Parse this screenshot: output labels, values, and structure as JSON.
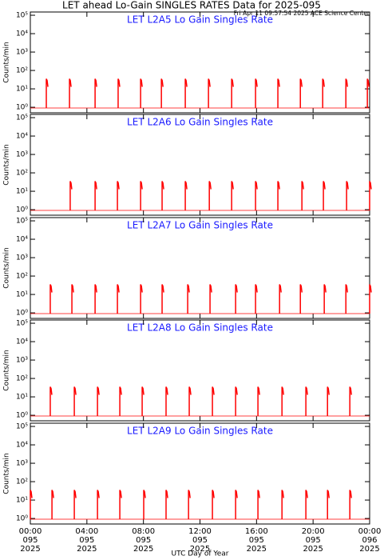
{
  "title": "LET ahead Lo-Gain SINGLES RATES Data for 2025-095",
  "timestamp": "Fri Apr 11 09:57:54 2025 ACE Science Center",
  "chart_data": [
    {
      "type": "spike",
      "title": "LET L2A5 Lo Gain Singles Rate",
      "ylabel": "Counts/min",
      "color": "#ff0000",
      "log_y": true,
      "xlim": [
        0,
        24
      ],
      "xticks": [
        0,
        4,
        8,
        12,
        16,
        20,
        24
      ],
      "ylim": [
        0.5,
        150000
      ],
      "yticks": [
        {
          "value": 1,
          "label": "10⁰"
        },
        {
          "value": 10,
          "label": "10¹"
        },
        {
          "value": 100,
          "label": "10²"
        },
        {
          "value": 1000,
          "label": "10³"
        },
        {
          "value": 10000,
          "label": "10⁴"
        },
        {
          "value": 100000,
          "label": "10⁵"
        }
      ],
      "x": [
        1.13,
        2.77,
        4.58,
        6.21,
        7.8,
        9.27,
        10.96,
        12.6,
        14.24,
        15.93,
        17.51,
        19.1,
        20.68,
        22.32,
        23.84
      ],
      "values": [
        35,
        35,
        35,
        35,
        35,
        35,
        35,
        35,
        35,
        35,
        35,
        35,
        35,
        35,
        35
      ]
    },
    {
      "type": "spike",
      "title": "LET L2A6 Lo Gain Singles Rate",
      "ylabel": "Counts/min",
      "color": "#ff0000",
      "log_y": true,
      "xlim": [
        0,
        24
      ],
      "xticks": [
        0,
        4,
        8,
        12,
        16,
        20,
        24
      ],
      "ylim": [
        0.5,
        150000
      ],
      "yticks": [
        {
          "value": 1,
          "label": "10⁰"
        },
        {
          "value": 10,
          "label": "10¹"
        },
        {
          "value": 100,
          "label": "10²"
        },
        {
          "value": 1000,
          "label": "10³"
        },
        {
          "value": 10000,
          "label": "10⁴"
        },
        {
          "value": 100000,
          "label": "10⁵"
        }
      ],
      "x": [
        2.82,
        4.58,
        6.16,
        7.8,
        9.32,
        10.96,
        12.66,
        14.24,
        15.93,
        17.51,
        19.21,
        20.73,
        22.37,
        24
      ],
      "values": [
        35,
        35,
        35,
        35,
        35,
        35,
        35,
        35,
        35,
        35,
        35,
        35,
        35,
        35
      ]
    },
    {
      "type": "spike",
      "title": "LET L2A7 Lo Gain Singles Rate",
      "ylabel": "Counts/min",
      "color": "#ff0000",
      "log_y": true,
      "xlim": [
        0,
        24
      ],
      "xticks": [
        0,
        4,
        8,
        12,
        16,
        20,
        24
      ],
      "ylim": [
        0.5,
        150000
      ],
      "yticks": [
        {
          "value": 1,
          "label": "10⁰"
        },
        {
          "value": 10,
          "label": "10¹"
        },
        {
          "value": 100,
          "label": "10²"
        },
        {
          "value": 1000,
          "label": "10³"
        },
        {
          "value": 10000,
          "label": "10⁴"
        },
        {
          "value": 100000,
          "label": "10⁵"
        }
      ],
      "x": [
        1.41,
        2.94,
        4.58,
        6.16,
        7.8,
        9.32,
        11.13,
        12.71,
        14.52,
        15.93,
        17.63,
        19.1,
        20.79,
        22.32,
        24
      ],
      "values": [
        35,
        35,
        35,
        35,
        35,
        35,
        35,
        35,
        35,
        35,
        35,
        35,
        35,
        35,
        35
      ]
    },
    {
      "type": "spike",
      "title": "LET L2A8 Lo Gain Singles Rate",
      "ylabel": "Counts/min",
      "color": "#ff0000",
      "log_y": true,
      "xlim": [
        0,
        24
      ],
      "xticks": [
        0,
        4,
        8,
        12,
        16,
        20,
        24
      ],
      "ylim": [
        0.5,
        150000
      ],
      "yticks": [
        {
          "value": 1,
          "label": "10⁰"
        },
        {
          "value": 10,
          "label": "10¹"
        },
        {
          "value": 100,
          "label": "10²"
        },
        {
          "value": 1000,
          "label": "10³"
        },
        {
          "value": 10000,
          "label": "10⁴"
        },
        {
          "value": 100000,
          "label": "10⁵"
        }
      ],
      "x": [
        1.41,
        3.11,
        4.75,
        6.33,
        7.91,
        9.6,
        11.24,
        12.88,
        14.52,
        16.1,
        17.8,
        19.49,
        21.02,
        22.6
      ],
      "values": [
        35,
        35,
        35,
        35,
        35,
        35,
        35,
        35,
        35,
        35,
        35,
        35,
        35,
        35
      ]
    },
    {
      "type": "spike",
      "title": "LET L2A9 Lo Gain Singles Rate",
      "ylabel": "Counts/min",
      "color": "#ff0000",
      "log_y": true,
      "xlabel": "UTC Day of Year",
      "xlim": [
        0,
        24
      ],
      "xticks": [
        {
          "value": 0,
          "label": "00:00",
          "day": "095",
          "year": "2025"
        },
        {
          "value": 4,
          "label": "04:00",
          "day": "095",
          "year": "2025"
        },
        {
          "value": 8,
          "label": "08:00",
          "day": "095",
          "year": "2025"
        },
        {
          "value": 12,
          "label": "12:00",
          "day": "095",
          "year": "2025"
        },
        {
          "value": 16,
          "label": "16:00",
          "day": "095",
          "year": "2025"
        },
        {
          "value": 20,
          "label": "20:00",
          "day": "095",
          "year": "2025"
        },
        {
          "value": 24,
          "label": "00:00",
          "day": "096",
          "year": "2025"
        }
      ],
      "ylim": [
        0.5,
        150000
      ],
      "yticks": [
        {
          "value": 1,
          "label": "10⁰"
        },
        {
          "value": 10,
          "label": "10¹"
        },
        {
          "value": 100,
          "label": "10²"
        },
        {
          "value": 1000,
          "label": "10³"
        },
        {
          "value": 10000,
          "label": "10⁴"
        },
        {
          "value": 100000,
          "label": "10⁵"
        }
      ],
      "x": [
        0,
        1.53,
        3.11,
        4.75,
        6.33,
        8.02,
        9.6,
        11.19,
        12.88,
        14.52,
        16.1,
        17.8,
        19.49,
        21.02,
        22.6
      ],
      "values": [
        35,
        35,
        35,
        35,
        35,
        35,
        35,
        35,
        35,
        35,
        35,
        35,
        35,
        35,
        35
      ]
    }
  ]
}
